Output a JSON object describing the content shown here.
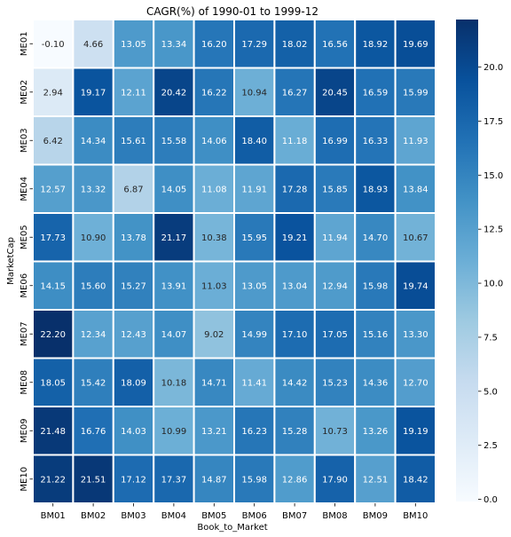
{
  "chart_data": {
    "type": "heatmap",
    "title": "CAGR(%) of 1990-01 to 1999-12",
    "xlabel": "Book_to_Market",
    "ylabel": "MarketCap",
    "x_categories": [
      "BM01",
      "BM02",
      "BM03",
      "BM04",
      "BM05",
      "BM06",
      "BM07",
      "BM08",
      "BM09",
      "BM10"
    ],
    "y_categories": [
      "ME01",
      "ME02",
      "ME03",
      "ME04",
      "ME05",
      "ME06",
      "ME07",
      "ME08",
      "ME09",
      "ME10"
    ],
    "values": [
      [
        -0.1,
        4.66,
        13.05,
        13.34,
        16.2,
        17.29,
        18.02,
        16.56,
        18.92,
        19.69
      ],
      [
        2.94,
        19.17,
        12.11,
        20.42,
        16.22,
        10.94,
        16.27,
        20.45,
        16.59,
        15.99
      ],
      [
        6.42,
        14.34,
        15.61,
        15.58,
        14.06,
        18.4,
        11.18,
        16.99,
        16.33,
        11.93
      ],
      [
        12.57,
        13.32,
        6.87,
        14.05,
        11.08,
        11.91,
        17.28,
        15.85,
        18.93,
        13.84
      ],
      [
        17.73,
        10.9,
        13.78,
        21.17,
        10.38,
        15.95,
        19.21,
        11.94,
        14.7,
        10.67
      ],
      [
        14.15,
        15.6,
        15.27,
        13.91,
        11.03,
        13.05,
        13.04,
        12.94,
        15.98,
        19.74
      ],
      [
        22.2,
        12.34,
        12.43,
        14.07,
        9.02,
        14.99,
        17.1,
        17.05,
        15.16,
        13.3
      ],
      [
        18.05,
        15.42,
        18.09,
        10.18,
        14.71,
        11.41,
        14.42,
        15.23,
        14.36,
        12.7
      ],
      [
        21.48,
        16.76,
        14.03,
        10.99,
        13.21,
        16.23,
        15.28,
        10.73,
        13.26,
        19.19
      ],
      [
        21.22,
        21.51,
        17.12,
        17.37,
        14.87,
        15.98,
        12.86,
        17.9,
        12.51,
        18.42
      ]
    ],
    "value_labels": [
      [
        "-0.10",
        "4.66",
        "13.05",
        "13.34",
        "16.20",
        "17.29",
        "18.02",
        "16.56",
        "18.92",
        "19.69"
      ],
      [
        "2.94",
        "19.17",
        "12.11",
        "20.42",
        "16.22",
        "10.94",
        "16.27",
        "20.45",
        "16.59",
        "15.99"
      ],
      [
        "6.42",
        "14.34",
        "15.61",
        "15.58",
        "14.06",
        "18.40",
        "11.18",
        "16.99",
        "16.33",
        "11.93"
      ],
      [
        "12.57",
        "13.32",
        "6.87",
        "14.05",
        "11.08",
        "11.91",
        "17.28",
        "15.85",
        "18.93",
        "13.84"
      ],
      [
        "17.73",
        "10.90",
        "13.78",
        "21.17",
        "10.38",
        "15.95",
        "19.21",
        "11.94",
        "14.70",
        "10.67"
      ],
      [
        "14.15",
        "15.60",
        "15.27",
        "13.91",
        "11.03",
        "13.05",
        "13.04",
        "12.94",
        "15.98",
        "19.74"
      ],
      [
        "22.20",
        "12.34",
        "12.43",
        "14.07",
        "9.02",
        "14.99",
        "17.10",
        "17.05",
        "15.16",
        "13.30"
      ],
      [
        "18.05",
        "15.42",
        "18.09",
        "10.18",
        "14.71",
        "11.41",
        "14.42",
        "15.23",
        "14.36",
        "12.70"
      ],
      [
        "21.48",
        "16.76",
        "14.03",
        "10.99",
        "13.21",
        "16.23",
        "15.28",
        "10.73",
        "13.26",
        "19.19"
      ],
      [
        "21.22",
        "21.51",
        "17.12",
        "17.37",
        "14.87",
        "15.98",
        "12.86",
        "17.90",
        "12.51",
        "18.42"
      ]
    ],
    "colormap": "Blues",
    "color_range": [
      -0.1,
      22.2
    ],
    "colorbar_ticks": [
      0.0,
      2.5,
      5.0,
      7.5,
      10.0,
      12.5,
      15.0,
      17.5,
      20.0
    ],
    "colorbar_tick_labels": [
      "0.0",
      "2.5",
      "5.0",
      "7.5",
      "10.0",
      "12.5",
      "15.0",
      "17.5",
      "20.0"
    ],
    "cell_border_color": "#ffffff",
    "grid": false,
    "legend": "colorbar-right"
  }
}
